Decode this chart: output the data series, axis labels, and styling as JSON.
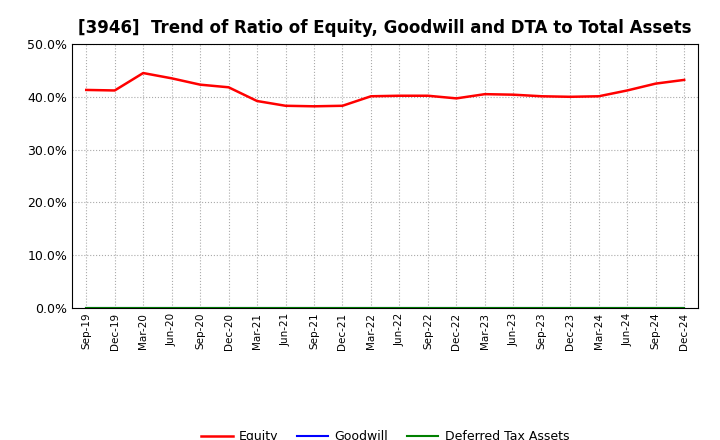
{
  "title": "[3946]  Trend of Ratio of Equity, Goodwill and DTA to Total Assets",
  "x_labels": [
    "Sep-19",
    "Dec-19",
    "Mar-20",
    "Jun-20",
    "Sep-20",
    "Dec-20",
    "Mar-21",
    "Jun-21",
    "Sep-21",
    "Dec-21",
    "Mar-22",
    "Jun-22",
    "Sep-22",
    "Dec-22",
    "Mar-23",
    "Jun-23",
    "Sep-23",
    "Dec-23",
    "Mar-24",
    "Jun-24",
    "Sep-24",
    "Dec-24"
  ],
  "equity": [
    41.3,
    41.2,
    44.5,
    43.5,
    42.3,
    41.8,
    39.2,
    38.3,
    38.2,
    38.3,
    40.1,
    40.2,
    40.2,
    39.7,
    40.5,
    40.4,
    40.1,
    40.0,
    40.1,
    41.2,
    42.5,
    43.2
  ],
  "goodwill": [
    0.0,
    0.0,
    0.0,
    0.0,
    0.0,
    0.0,
    0.0,
    0.0,
    0.0,
    0.0,
    0.0,
    0.0,
    0.0,
    0.0,
    0.0,
    0.0,
    0.0,
    0.0,
    0.0,
    0.0,
    0.0,
    0.0
  ],
  "dta": [
    0.0,
    0.0,
    0.0,
    0.0,
    0.0,
    0.0,
    0.0,
    0.0,
    0.0,
    0.0,
    0.0,
    0.0,
    0.0,
    0.0,
    0.0,
    0.0,
    0.0,
    0.0,
    0.0,
    0.0,
    0.0,
    0.0
  ],
  "equity_color": "#ff0000",
  "goodwill_color": "#0000ff",
  "dta_color": "#008000",
  "ylim": [
    0,
    50
  ],
  "yticks": [
    0,
    10,
    20,
    30,
    40,
    50
  ],
  "background_color": "#ffffff",
  "plot_bg_color": "#ffffff",
  "grid_color": "#aaaaaa",
  "title_fontsize": 12,
  "legend_labels": [
    "Equity",
    "Goodwill",
    "Deferred Tax Assets"
  ]
}
